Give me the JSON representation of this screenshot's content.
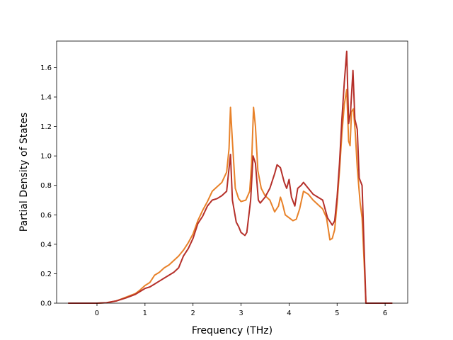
{
  "chart_data": {
    "type": "line",
    "xlabel": "Frequency (THz)",
    "ylabel": "Partial Density of States",
    "xlim": [
      -0.84,
      6.47
    ],
    "ylim": [
      0.0,
      1.78
    ],
    "xticks": [
      0,
      1,
      2,
      3,
      4,
      5,
      6
    ],
    "yticks": [
      0.0,
      0.2,
      0.4,
      0.6,
      0.8,
      1.0,
      1.2,
      1.4,
      1.6
    ],
    "xtick_labels": [
      "0",
      "1",
      "2",
      "3",
      "4",
      "5",
      "6"
    ],
    "ytick_labels": [
      "0.0",
      "0.2",
      "0.4",
      "0.6",
      "0.8",
      "1.0",
      "1.2",
      "1.4",
      "1.6"
    ],
    "grid": false,
    "series": [
      {
        "color": "#e8822a",
        "points": [
          [
            -0.6,
            0.0
          ],
          [
            0.0,
            0.0
          ],
          [
            0.2,
            0.003
          ],
          [
            0.4,
            0.015
          ],
          [
            0.6,
            0.04
          ],
          [
            0.8,
            0.065
          ],
          [
            0.9,
            0.09
          ],
          [
            1.0,
            0.12
          ],
          [
            1.1,
            0.14
          ],
          [
            1.2,
            0.19
          ],
          [
            1.3,
            0.21
          ],
          [
            1.4,
            0.24
          ],
          [
            1.5,
            0.26
          ],
          [
            1.6,
            0.29
          ],
          [
            1.7,
            0.32
          ],
          [
            1.8,
            0.36
          ],
          [
            1.9,
            0.41
          ],
          [
            2.0,
            0.47
          ],
          [
            2.1,
            0.56
          ],
          [
            2.2,
            0.63
          ],
          [
            2.3,
            0.69
          ],
          [
            2.4,
            0.76
          ],
          [
            2.5,
            0.79
          ],
          [
            2.6,
            0.82
          ],
          [
            2.7,
            0.89
          ],
          [
            2.75,
            1.05
          ],
          [
            2.78,
            1.33
          ],
          [
            2.82,
            1.1
          ],
          [
            2.88,
            0.78
          ],
          [
            2.95,
            0.71
          ],
          [
            3.0,
            0.69
          ],
          [
            3.1,
            0.7
          ],
          [
            3.18,
            0.76
          ],
          [
            3.22,
            0.95
          ],
          [
            3.26,
            1.33
          ],
          [
            3.3,
            1.2
          ],
          [
            3.35,
            0.9
          ],
          [
            3.42,
            0.78
          ],
          [
            3.5,
            0.73
          ],
          [
            3.6,
            0.7
          ],
          [
            3.7,
            0.62
          ],
          [
            3.78,
            0.66
          ],
          [
            3.82,
            0.72
          ],
          [
            3.86,
            0.68
          ],
          [
            3.92,
            0.6
          ],
          [
            4.0,
            0.58
          ],
          [
            4.08,
            0.56
          ],
          [
            4.15,
            0.57
          ],
          [
            4.22,
            0.64
          ],
          [
            4.3,
            0.76
          ],
          [
            4.4,
            0.74
          ],
          [
            4.5,
            0.7
          ],
          [
            4.6,
            0.67
          ],
          [
            4.7,
            0.64
          ],
          [
            4.78,
            0.58
          ],
          [
            4.85,
            0.43
          ],
          [
            4.9,
            0.44
          ],
          [
            4.95,
            0.5
          ],
          [
            5.0,
            0.68
          ],
          [
            5.05,
            0.9
          ],
          [
            5.1,
            1.15
          ],
          [
            5.15,
            1.35
          ],
          [
            5.2,
            1.45
          ],
          [
            5.24,
            1.1
          ],
          [
            5.27,
            1.07
          ],
          [
            5.3,
            1.3
          ],
          [
            5.34,
            1.32
          ],
          [
            5.38,
            1.15
          ],
          [
            5.42,
            0.92
          ],
          [
            5.48,
            0.68
          ],
          [
            5.52,
            0.58
          ],
          [
            5.56,
            0.3
          ],
          [
            5.6,
            0.0
          ],
          [
            6.15,
            0.0
          ]
        ]
      },
      {
        "color": "#b5302a",
        "points": [
          [
            -0.6,
            0.0
          ],
          [
            0.0,
            0.0
          ],
          [
            0.2,
            0.003
          ],
          [
            0.4,
            0.015
          ],
          [
            0.6,
            0.035
          ],
          [
            0.8,
            0.06
          ],
          [
            0.9,
            0.08
          ],
          [
            1.0,
            0.1
          ],
          [
            1.1,
            0.11
          ],
          [
            1.2,
            0.13
          ],
          [
            1.3,
            0.15
          ],
          [
            1.4,
            0.17
          ],
          [
            1.5,
            0.19
          ],
          [
            1.6,
            0.21
          ],
          [
            1.7,
            0.24
          ],
          [
            1.75,
            0.28
          ],
          [
            1.8,
            0.32
          ],
          [
            1.9,
            0.37
          ],
          [
            2.0,
            0.44
          ],
          [
            2.1,
            0.54
          ],
          [
            2.2,
            0.59
          ],
          [
            2.3,
            0.66
          ],
          [
            2.4,
            0.7
          ],
          [
            2.5,
            0.71
          ],
          [
            2.6,
            0.73
          ],
          [
            2.7,
            0.76
          ],
          [
            2.78,
            1.01
          ],
          [
            2.82,
            0.7
          ],
          [
            2.9,
            0.55
          ],
          [
            2.95,
            0.52
          ],
          [
            3.0,
            0.48
          ],
          [
            3.08,
            0.46
          ],
          [
            3.12,
            0.48
          ],
          [
            3.2,
            0.7
          ],
          [
            3.25,
            1.0
          ],
          [
            3.3,
            0.95
          ],
          [
            3.36,
            0.7
          ],
          [
            3.4,
            0.68
          ],
          [
            3.5,
            0.72
          ],
          [
            3.6,
            0.78
          ],
          [
            3.7,
            0.88
          ],
          [
            3.75,
            0.94
          ],
          [
            3.82,
            0.92
          ],
          [
            3.9,
            0.82
          ],
          [
            3.95,
            0.78
          ],
          [
            4.0,
            0.84
          ],
          [
            4.05,
            0.72
          ],
          [
            4.12,
            0.66
          ],
          [
            4.18,
            0.78
          ],
          [
            4.25,
            0.8
          ],
          [
            4.3,
            0.82
          ],
          [
            4.4,
            0.78
          ],
          [
            4.5,
            0.74
          ],
          [
            4.6,
            0.72
          ],
          [
            4.7,
            0.7
          ],
          [
            4.75,
            0.64
          ],
          [
            4.8,
            0.58
          ],
          [
            4.9,
            0.53
          ],
          [
            4.95,
            0.56
          ],
          [
            5.0,
            0.72
          ],
          [
            5.05,
            0.95
          ],
          [
            5.1,
            1.25
          ],
          [
            5.15,
            1.5
          ],
          [
            5.2,
            1.71
          ],
          [
            5.24,
            1.22
          ],
          [
            5.28,
            1.3
          ],
          [
            5.33,
            1.58
          ],
          [
            5.37,
            1.25
          ],
          [
            5.42,
            1.18
          ],
          [
            5.46,
            0.85
          ],
          [
            5.52,
            0.8
          ],
          [
            5.56,
            0.4
          ],
          [
            5.6,
            0.0
          ],
          [
            6.15,
            0.0
          ]
        ]
      }
    ]
  }
}
